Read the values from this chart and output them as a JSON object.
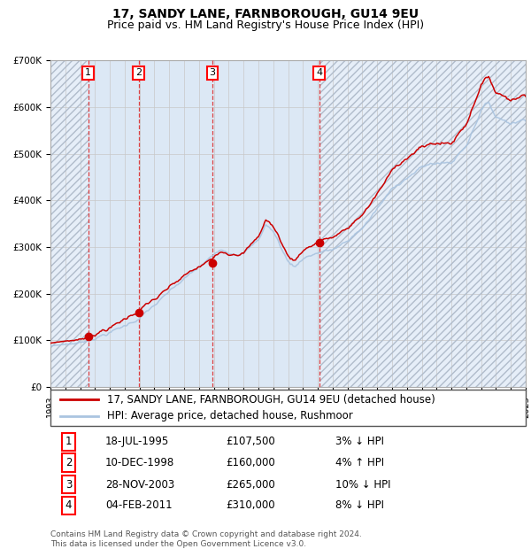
{
  "title": "17, SANDY LANE, FARNBOROUGH, GU14 9EU",
  "subtitle": "Price paid vs. HM Land Registry's House Price Index (HPI)",
  "ylim": [
    0,
    700000
  ],
  "yticks": [
    0,
    100000,
    200000,
    300000,
    400000,
    500000,
    600000,
    700000
  ],
  "ytick_labels": [
    "£0",
    "£100K",
    "£200K",
    "£300K",
    "£400K",
    "£500K",
    "£600K",
    "£700K"
  ],
  "x_start_year": 1993,
  "x_end_year": 2025,
  "hpi_color": "#aac4e0",
  "price_color": "#cc0000",
  "marker_color": "#cc0000",
  "grid_color": "#c8c8c8",
  "bg_color": "#dce8f5",
  "hatch_color": "#b0bccb",
  "sale_dates": [
    1995.54,
    1998.94,
    2003.91,
    2011.09
  ],
  "sale_prices": [
    107500,
    160000,
    265000,
    310000
  ],
  "sale_labels": [
    "1",
    "2",
    "3",
    "4"
  ],
  "legend_line1": "17, SANDY LANE, FARNBOROUGH, GU14 9EU (detached house)",
  "legend_line2": "HPI: Average price, detached house, Rushmoor",
  "table_entries": [
    [
      "1",
      "18-JUL-1995",
      "£107,500",
      "3% ↓ HPI"
    ],
    [
      "2",
      "10-DEC-1998",
      "£160,000",
      "4% ↑ HPI"
    ],
    [
      "3",
      "28-NOV-2003",
      "£265,000",
      "10% ↓ HPI"
    ],
    [
      "4",
      "04-FEB-2011",
      "£310,000",
      "8% ↓ HPI"
    ]
  ],
  "footer": "Contains HM Land Registry data © Crown copyright and database right 2024.\nThis data is licensed under the Open Government Licence v3.0.",
  "title_fontsize": 10,
  "subtitle_fontsize": 9,
  "tick_fontsize": 7.5,
  "legend_fontsize": 8.5,
  "table_fontsize": 8.5,
  "footer_fontsize": 6.5
}
